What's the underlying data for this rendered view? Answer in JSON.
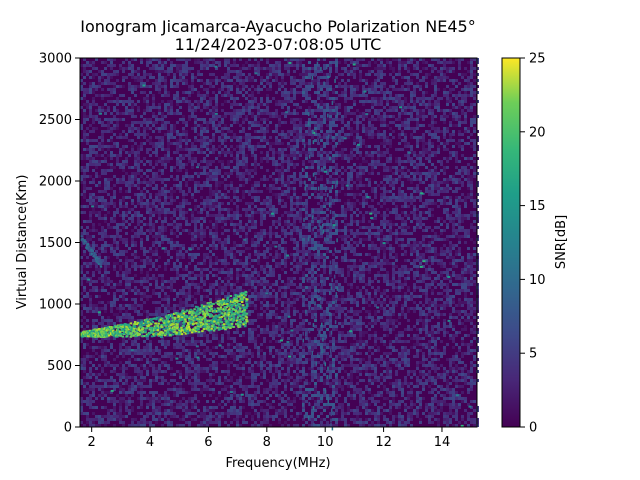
{
  "chart_data": {
    "type": "heatmap",
    "title": "Ionogram Jicamarca-Ayacucho Polarization NE45°",
    "subtitle": "11/24/2023-07:08:05 UTC",
    "xlabel": "Frequency(MHz)",
    "ylabel": "Virtual Distance(Km)",
    "xlim": [
      1.6,
      15.2
    ],
    "ylim": [
      0,
      3000
    ],
    "xticks": [
      2,
      4,
      6,
      8,
      10,
      12,
      14
    ],
    "yticks": [
      0,
      500,
      1000,
      1500,
      2000,
      2500,
      3000
    ],
    "colorbar": {
      "label": "SNR[dB]",
      "range": [
        0,
        25
      ],
      "ticks": [
        0,
        5,
        10,
        15,
        20,
        25
      ],
      "colormap": "viridis"
    },
    "features": [
      {
        "name": "F-layer echo trace",
        "freq_range_mhz": [
          1.6,
          7.4
        ],
        "distance_km": [
          [
            1.6,
            760
          ],
          [
            3.0,
            790
          ],
          [
            4.5,
            830
          ],
          [
            5.5,
            880
          ],
          [
            6.5,
            930
          ],
          [
            7.3,
            970
          ]
        ],
        "snr_db": 23
      },
      {
        "name": "Multi-hop echo",
        "freq_range_mhz": [
          1.6,
          2.3
        ],
        "distance_km": [
          [
            1.6,
            1550
          ],
          [
            2.3,
            1320
          ]
        ],
        "snr_db": 10
      },
      {
        "name": "Interference band",
        "freq_range_mhz": [
          9.2,
          10.4
        ],
        "snr_db": 4
      }
    ],
    "grid": false
  },
  "colors": {
    "background_low": "#440154",
    "viridis_stops": [
      "#440154",
      "#3b528b",
      "#21918c",
      "#5ec962",
      "#fde725"
    ]
  }
}
